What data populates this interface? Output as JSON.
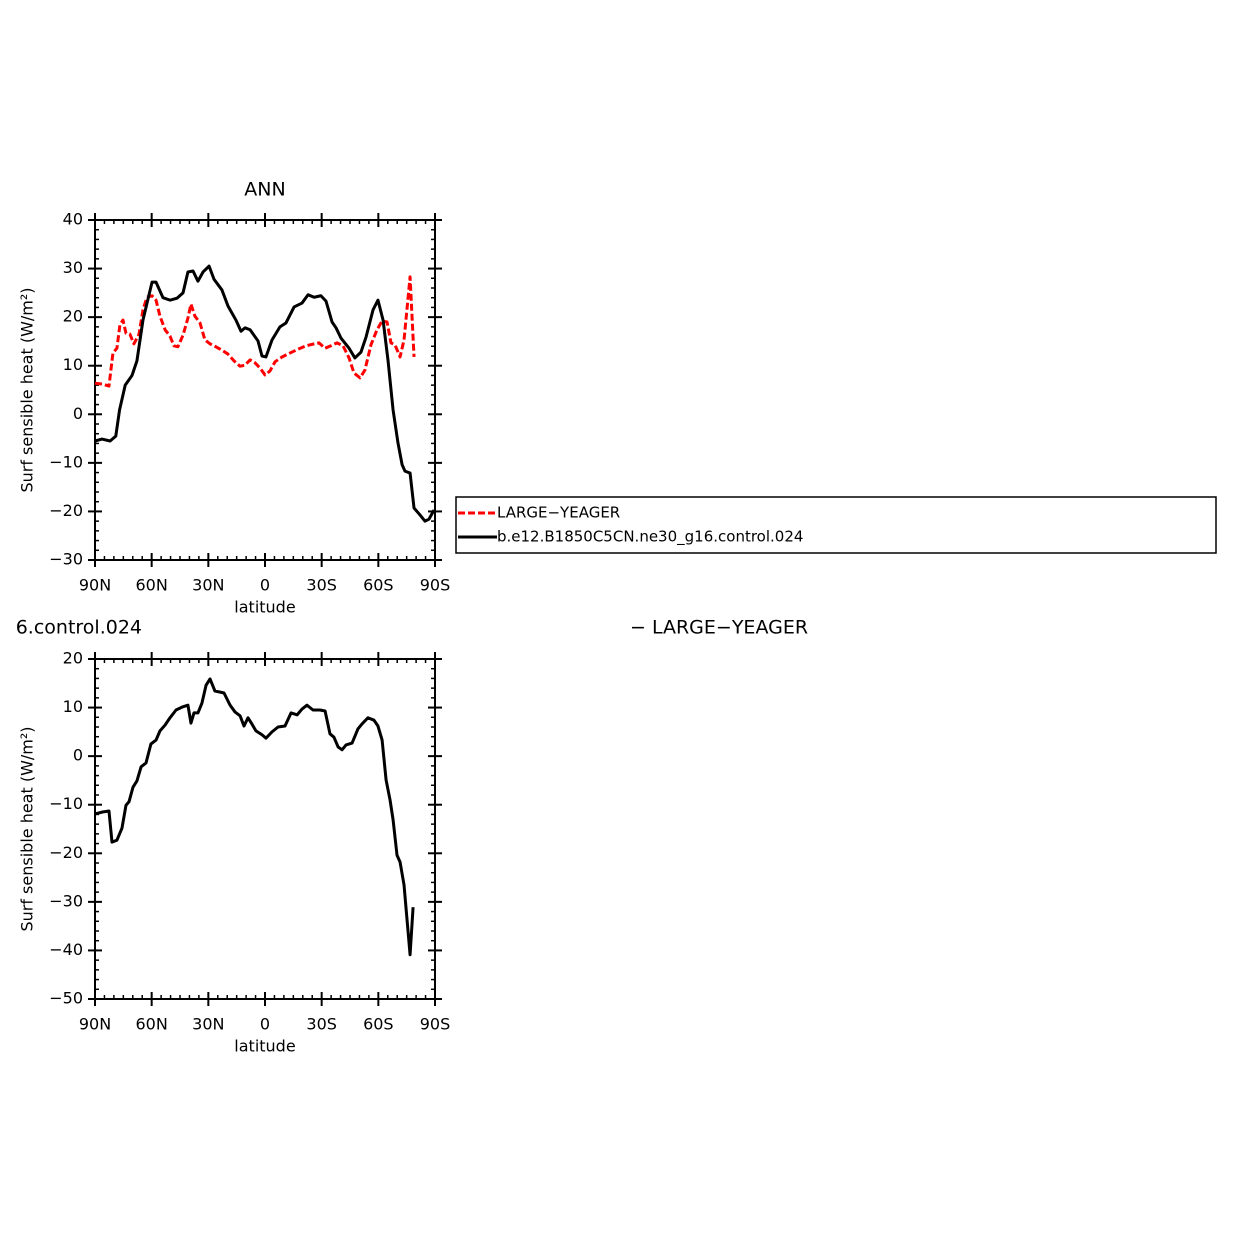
{
  "chart_data": [
    {
      "type": "line",
      "title": "ANN",
      "xlabel": "latitude",
      "ylabel": "Surf sensible heat (W/m²)",
      "xlim": [
        90,
        -90
      ],
      "xticks": [
        {
          "value": 90,
          "label": "90N"
        },
        {
          "value": 60,
          "label": "60N"
        },
        {
          "value": 30,
          "label": "30N"
        },
        0,
        {
          "value": -30,
          "label": "30S"
        },
        {
          "value": -60,
          "label": "60S"
        },
        {
          "value": -90,
          "label": "90S"
        }
      ],
      "ylim": [
        -30,
        40
      ],
      "yticks": [
        {
          "value": -30,
          "label": "−30"
        },
        {
          "value": -20,
          "label": "−20"
        },
        {
          "value": -10,
          "label": "−10"
        },
        0,
        10,
        20,
        30,
        40
      ],
      "legend_position": "right",
      "series": [
        {
          "name": "LARGE−YEAGER",
          "color": "#ff0000",
          "dashed": true,
          "x": [
            90,
            85.8,
            82.6,
            80.5,
            78.4,
            76.8,
            75.2,
            73.6,
            71.5,
            69.4,
            66.7,
            64.6,
            62.5,
            59.8,
            57.7,
            55.6,
            52.9,
            50.3,
            48.2,
            46.1,
            43.4,
            40.8,
            39.2,
            37.1,
            34.4,
            31.8,
            29.1,
            26,
            22.8,
            19.6,
            16.4,
            13.2,
            10.6,
            7.9,
            5.3,
            2.6,
            0,
            -2.6,
            -5.3,
            -9,
            -13.2,
            -17.5,
            -21.7,
            -26,
            -28.6,
            -31.8,
            -34.9,
            -38.1,
            -41.3,
            -44.5,
            -47.1,
            -50.3,
            -52.9,
            -56.1,
            -59.3,
            -62,
            -64.6,
            -66.7,
            -68.8,
            -71.5,
            -73.6,
            -76.8,
            -78.9
          ],
          "values": [
            6.4,
            6.2,
            5.8,
            12.6,
            13.6,
            18.4,
            19.4,
            16.7,
            16.5,
            14.5,
            16.5,
            21.5,
            24.1,
            24.4,
            23.5,
            20.2,
            17.4,
            16.1,
            14.1,
            13.9,
            16.3,
            19.8,
            22.7,
            20.2,
            18.8,
            15.3,
            14.5,
            13.9,
            13.2,
            12.4,
            11,
            9.9,
            10.1,
            11.2,
            10.6,
            9.5,
            8.1,
            8.9,
            10.8,
            11.8,
            12.6,
            13.4,
            14.1,
            14.5,
            14.7,
            13.6,
            14.1,
            14.7,
            14.1,
            11.6,
            8.5,
            7.5,
            9.1,
            14.3,
            17.4,
            19.2,
            19,
            14.7,
            14.3,
            11.8,
            15.3,
            28.3,
            11.8
          ]
        },
        {
          "name": "b.e12.B1850C5CN.ne30_g16.control.024",
          "color": "#000000",
          "dashed": false,
          "x": [
            90,
            86.3,
            82,
            79,
            77,
            74,
            70.4,
            67.8,
            64.6,
            59.8,
            57.7,
            54,
            50.3,
            46.6,
            43.4,
            40.8,
            38.1,
            35.5,
            32.8,
            29.6,
            27,
            22.8,
            19.6,
            15.4,
            12.7,
            10.6,
            7.9,
            3.7,
            1.6,
            -0.5,
            -3.7,
            -7.9,
            -11.1,
            -15.4,
            -19.6,
            -22.8,
            -26,
            -29.6,
            -32.3,
            -35.5,
            -37.6,
            -40.2,
            -44.5,
            -47.6,
            -50.8,
            -53.5,
            -57.2,
            -59.8,
            -62.5,
            -65.1,
            -67.8,
            -70.4,
            -72.6,
            -74.1,
            -76.8,
            -78.9,
            -82,
            -84.7,
            -86.8,
            -89.5
          ],
          "values": [
            -5.5,
            -5.1,
            -5.5,
            -4.5,
            0.9,
            6,
            8,
            11,
            19.4,
            27.2,
            27.2,
            24,
            23.5,
            23.9,
            25,
            29.3,
            29.5,
            27.4,
            29.3,
            30.5,
            27.8,
            25.6,
            22.3,
            19.4,
            17.1,
            17.8,
            17.4,
            15.1,
            12,
            11.8,
            15.3,
            18,
            18.8,
            22.1,
            22.9,
            24.6,
            24.1,
            24.4,
            23.3,
            19,
            17.8,
            15.7,
            13.6,
            11.6,
            12.8,
            15.9,
            21.5,
            23.5,
            19.4,
            11.2,
            0.9,
            -5.9,
            -10.4,
            -11.7,
            -12.1,
            -19.3,
            -20.7,
            -22,
            -21.6,
            -19.7
          ]
        }
      ]
    },
    {
      "type": "line",
      "title": "6.control.024",
      "subtitle": "− LARGE−YEAGER",
      "xlabel": "latitude",
      "ylabel": "Surf sensible heat (W/m²)",
      "xlim": [
        90,
        -90
      ],
      "xticks": [
        {
          "value": 90,
          "label": "90N"
        },
        {
          "value": 60,
          "label": "60N"
        },
        {
          "value": 30,
          "label": "30N"
        },
        0,
        {
          "value": -30,
          "label": "30S"
        },
        {
          "value": -60,
          "label": "60S"
        },
        {
          "value": -90,
          "label": "90S"
        }
      ],
      "ylim": [
        -50,
        20
      ],
      "yticks": [
        {
          "value": -50,
          "label": "−50"
        },
        {
          "value": -40,
          "label": "−40"
        },
        {
          "value": -30,
          "label": "−30"
        },
        {
          "value": -20,
          "label": "−20"
        },
        {
          "value": -10,
          "label": "−10"
        },
        0,
        10,
        20
      ],
      "series": [
        {
          "color": "#000000",
          "dashed": false,
          "x": [
            90,
            86,
            82.6,
            81,
            78.4,
            75.7,
            73.6,
            72,
            69.9,
            67.8,
            65.6,
            63,
            60.4,
            57.7,
            55.6,
            52.9,
            50.3,
            47.1,
            43.9,
            40.8,
            39.2,
            37.6,
            35.5,
            33.4,
            31.2,
            29.1,
            26.5,
            24,
            21.7,
            18.5,
            15.9,
            13.2,
            11.1,
            9,
            6.9,
            4.8,
            1.6,
            -0.5,
            -3.7,
            -6.9,
            -10.6,
            -13.8,
            -17,
            -19.6,
            -22.2,
            -25.4,
            -29.1,
            -31.8,
            -34.4,
            -36.5,
            -38.7,
            -40.8,
            -42.9,
            -46.1,
            -49.2,
            -51.3,
            -54.5,
            -57.7,
            -59.8,
            -62,
            -64.1,
            -66.2,
            -67.8,
            -69.9,
            -71.5,
            -73.6,
            -76.8,
            -78.4
          ],
          "values": [
            -11.9,
            -11.5,
            -11.3,
            -17.7,
            -17.3,
            -14.8,
            -10.1,
            -9.4,
            -6.4,
            -5.1,
            -2.2,
            -1.4,
            2.5,
            3.3,
            5.2,
            6.4,
            7.9,
            9.5,
            10.1,
            10.5,
            6.8,
            8.9,
            8.9,
            10.9,
            14.6,
            15.9,
            13.4,
            13.2,
            13,
            10.5,
            9.1,
            8.3,
            6.2,
            7.9,
            6.6,
            5.2,
            4.4,
            3.7,
            5,
            6,
            6.2,
            8.9,
            8.5,
            9.7,
            10.5,
            9.5,
            9.5,
            9.3,
            4.6,
            3.9,
            1.9,
            1.3,
            2.3,
            2.7,
            5.6,
            6.6,
            7.9,
            7.4,
            6.2,
            3.3,
            -4.9,
            -9,
            -13.1,
            -20.4,
            -21.8,
            -26.5,
            -40.9,
            -31.1
          ]
        }
      ]
    }
  ]
}
